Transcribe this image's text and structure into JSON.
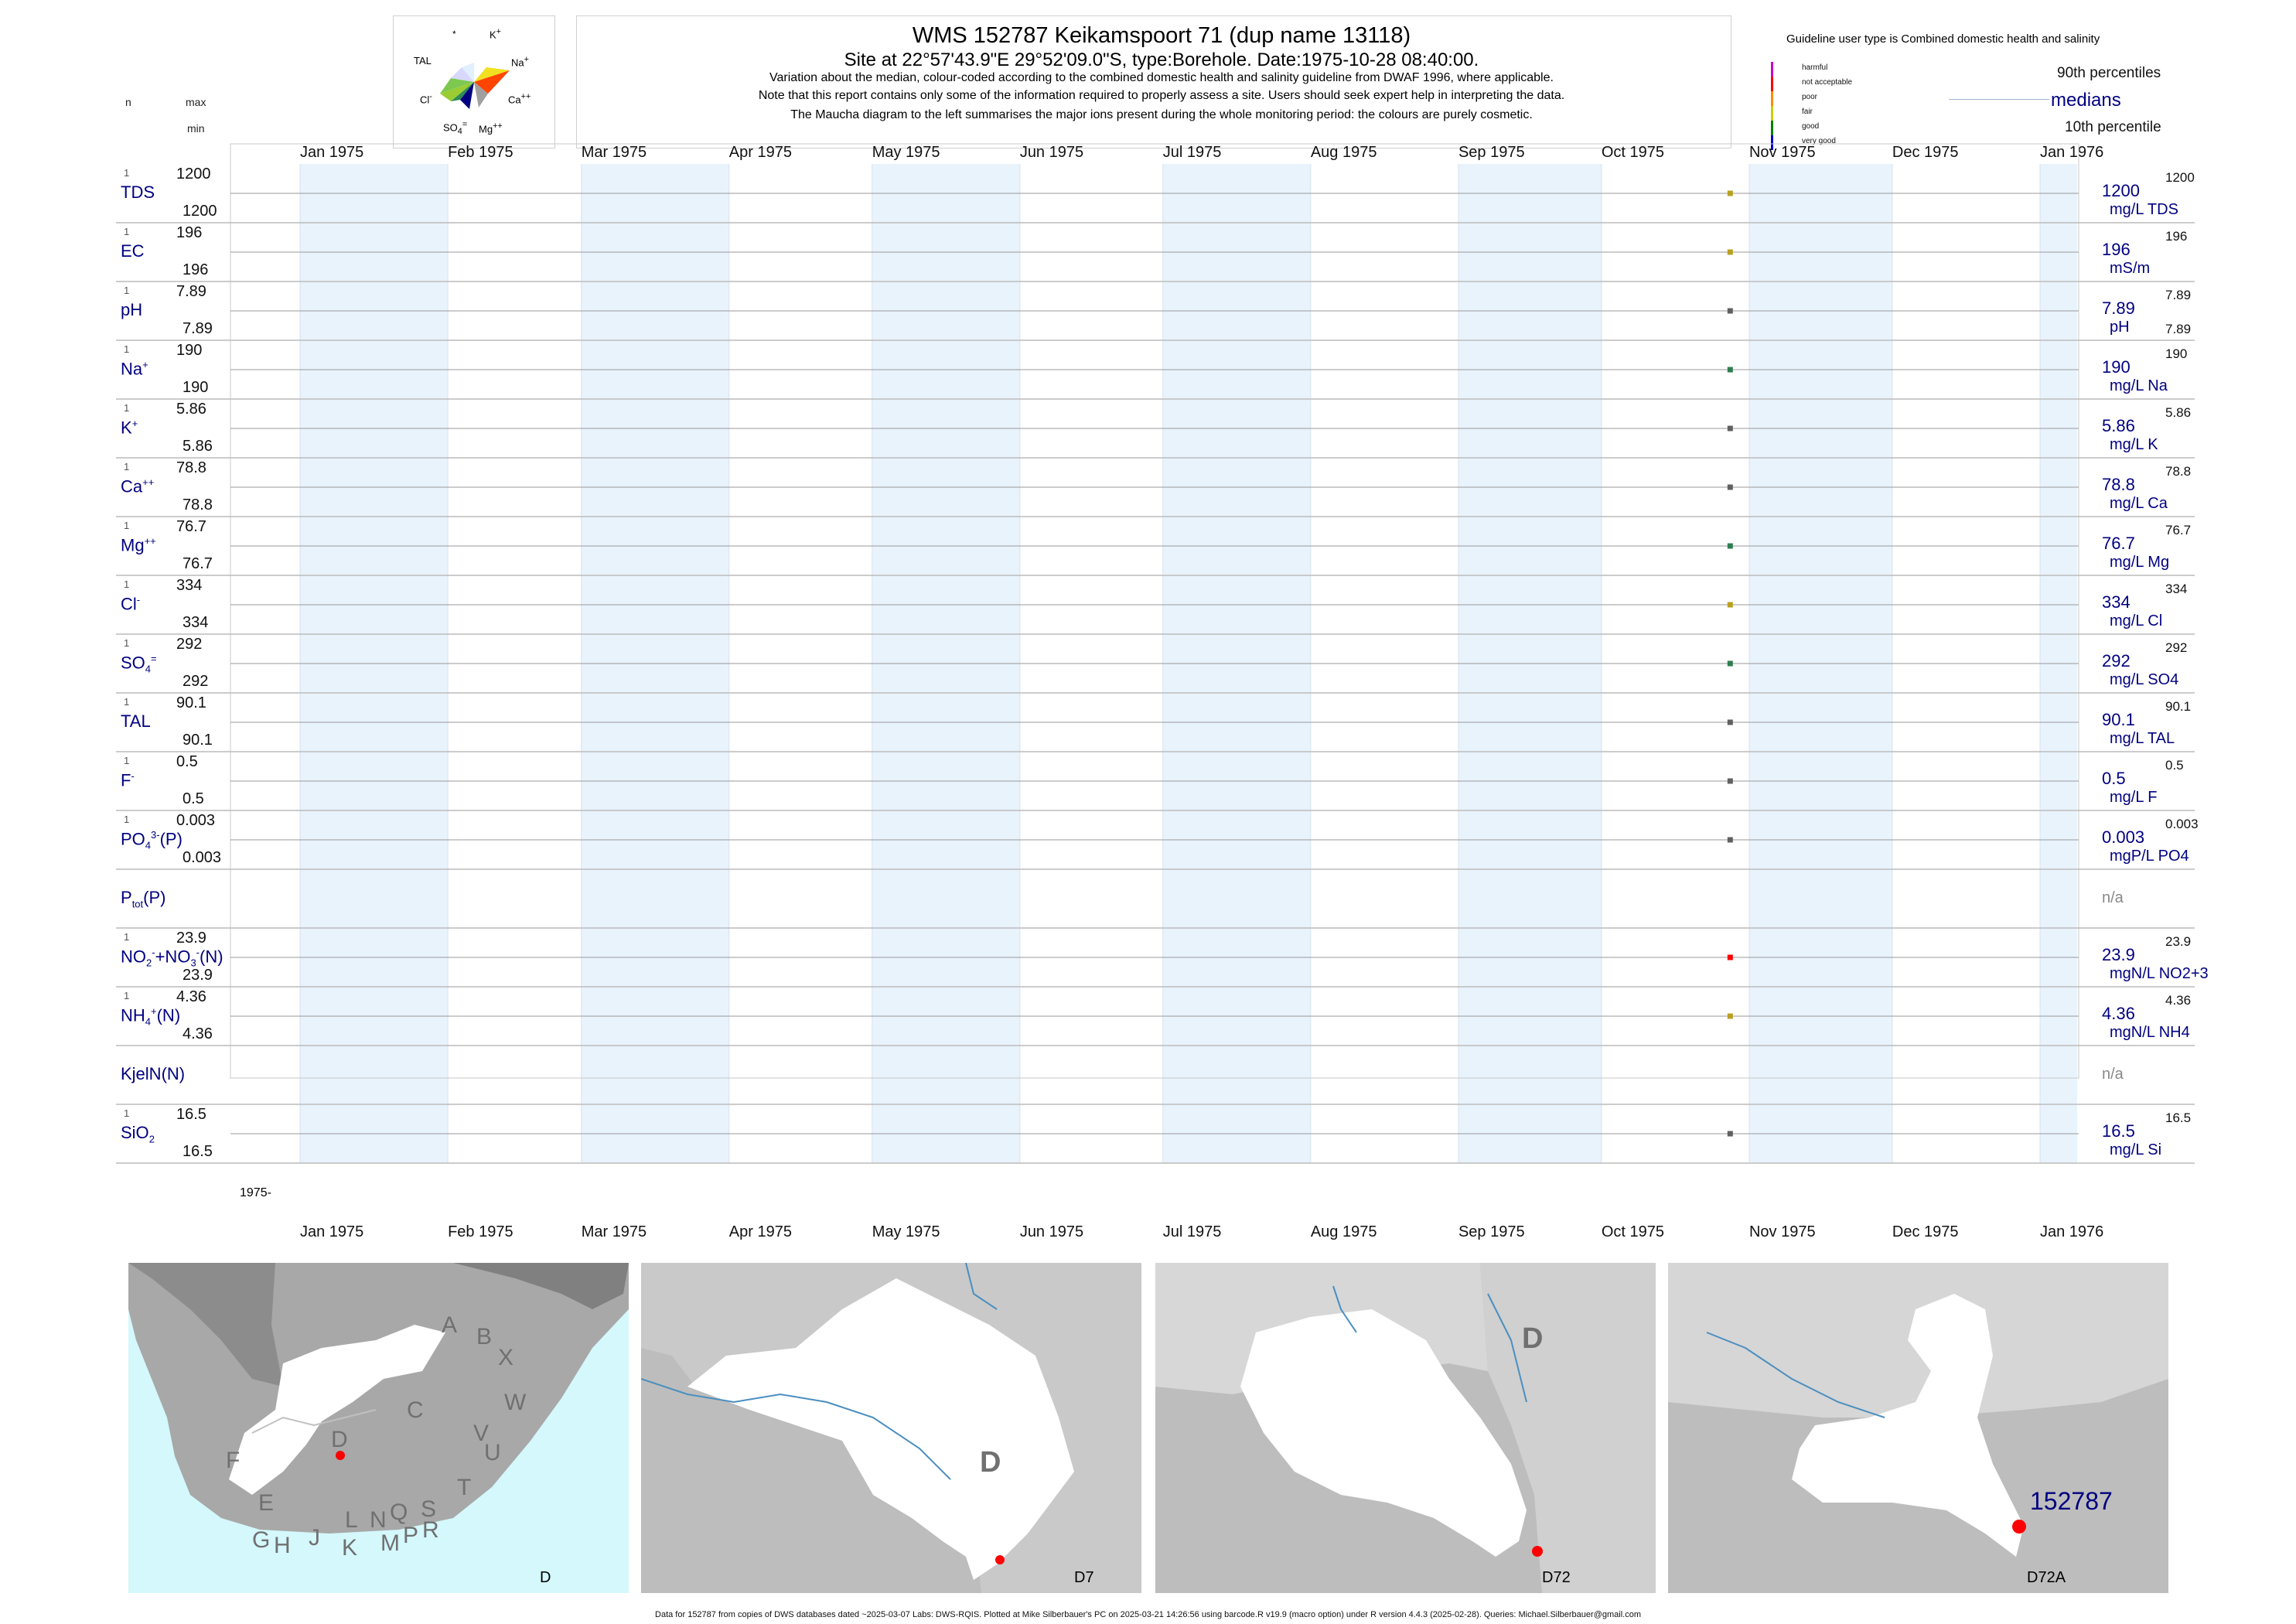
{
  "header": {
    "title": "WMS 152787  Keikamspoort 71 (dup name 13118)",
    "subtitle": "Site at 22°57'43.9\"E 29°52'09.0\"S, type:Borehole. Date:1975-10-28 08:40:00.",
    "note1": "Variation about the median,  colour-coded according to the combined domestic health and salinity guideline from DWAF 1996, where applicable.",
    "note2": "Note that this report contains only some of the information required to properly assess a site. Users should seek expert help in interpreting the data.",
    "note3": "The Maucha diagram to the left summarises the major ions present during the whole monitoring period: the colours are purely cosmetic.",
    "col_n": "n",
    "col_max": "max",
    "col_min": "min"
  },
  "maucha": {
    "labels": {
      "star": "*",
      "k": "K+",
      "na": "Na+",
      "ca": "Ca++",
      "mg": "Mg++",
      "so4": "SO4",
      "cl": "Cl-",
      "tal": "TAL"
    }
  },
  "legend": {
    "title": "Guideline user type is Combined domestic health and salinity",
    "scale": [
      {
        "label": "harmful",
        "color": "#cc00cc"
      },
      {
        "label": "not acceptable",
        "color": "#ff0000"
      },
      {
        "label": "poor",
        "color": "#ff8c00"
      },
      {
        "label": "fair",
        "color": "#cccc00"
      },
      {
        "label": "good",
        "color": "#008000"
      },
      {
        "label": "very good",
        "color": "#0000cc"
      }
    ],
    "p90": "90th percentiles",
    "medians": "medians",
    "p10": "10th percentile"
  },
  "months_top": [
    "Jan 1975",
    "Feb 1975",
    "Mar 1975",
    "Apr 1975",
    "May 1975",
    "Jun 1975",
    "Jul 1975",
    "Aug 1975",
    "Sep 1975",
    "Oct 1975",
    "Nov 1975",
    "Dec 1975",
    "Jan 1976"
  ],
  "start_label": "1975-",
  "chart_data": {
    "type": "scatter",
    "x_range": [
      "1975-01-01",
      "1976-01-01"
    ],
    "sample_date": "1975-10-28",
    "series": [
      {
        "name": "TDS",
        "n": "1",
        "max": "1200",
        "min": "1200",
        "value": 1200,
        "value_label": "1200",
        "unit": "mg/L TDS",
        "r_max": "1200",
        "r_min": "",
        "color": "#b8a020"
      },
      {
        "name": "EC",
        "n": "1",
        "max": "196",
        "min": "196",
        "value": 196,
        "value_label": "196",
        "unit": "mS/m",
        "r_max": "196",
        "r_min": "",
        "color": "#b8a020"
      },
      {
        "name": "pH",
        "n": "1",
        "max": "7.89",
        "min": "7.89",
        "value": 7.89,
        "value_label": "7.89",
        "unit": "pH",
        "r_max": "7.89",
        "r_min": "7.89",
        "color": "#606060"
      },
      {
        "name": "Na+",
        "n": "1",
        "max": "190",
        "min": "190",
        "value": 190,
        "value_label": "190",
        "unit": "mg/L Na",
        "r_max": "190",
        "r_min": "",
        "color": "#2e7d4f"
      },
      {
        "name": "K+",
        "n": "1",
        "max": "5.86",
        "min": "5.86",
        "value": 5.86,
        "value_label": "5.86",
        "unit": "mg/L K",
        "r_max": "5.86",
        "r_min": "",
        "color": "#606060"
      },
      {
        "name": "Ca++",
        "n": "1",
        "max": "78.8",
        "min": "78.8",
        "value": 78.8,
        "value_label": "78.8",
        "unit": "mg/L Ca",
        "r_max": "78.8",
        "r_min": "",
        "color": "#606060"
      },
      {
        "name": "Mg++",
        "n": "1",
        "max": "76.7",
        "min": "76.7",
        "value": 76.7,
        "value_label": "76.7",
        "unit": "mg/L Mg",
        "r_max": "76.7",
        "r_min": "",
        "color": "#2e7d4f"
      },
      {
        "name": "Cl-",
        "n": "1",
        "max": "334",
        "min": "334",
        "value": 334,
        "value_label": "334",
        "unit": "mg/L Cl",
        "r_max": "334",
        "r_min": "",
        "color": "#b8a020"
      },
      {
        "name": "SO4=",
        "n": "1",
        "max": "292",
        "min": "292",
        "value": 292,
        "value_label": "292",
        "unit": "mg/L SO4",
        "r_max": "292",
        "r_min": "",
        "color": "#2e7d4f"
      },
      {
        "name": "TAL",
        "n": "1",
        "max": "90.1",
        "min": "90.1",
        "value": 90.1,
        "value_label": "90.1",
        "unit": "mg/L TAL",
        "r_max": "90.1",
        "r_min": "",
        "color": "#606060"
      },
      {
        "name": "F-",
        "n": "1",
        "max": "0.5",
        "min": "0.5",
        "value": 0.5,
        "value_label": "0.5",
        "unit": "mg/L F",
        "r_max": "0.5",
        "r_min": "",
        "color": "#606060"
      },
      {
        "name": "PO4(P)",
        "n": "1",
        "max": "0.003",
        "min": "0.003",
        "value": 0.003,
        "value_label": "0.003",
        "unit": "mgP/L PO4",
        "r_max": "0.003",
        "r_min": "",
        "color": "#606060"
      },
      {
        "name": "Ptot(P)",
        "n": "",
        "max": "",
        "min": "",
        "value": null,
        "value_label": "n/a",
        "unit": "",
        "r_max": "",
        "r_min": "",
        "color": "#606060"
      },
      {
        "name": "NO2+NO3(N)",
        "n": "1",
        "max": "23.9",
        "min": "23.9",
        "value": 23.9,
        "value_label": "23.9",
        "unit": "mgN/L NO2+3",
        "r_max": "23.9",
        "r_min": "",
        "color": "#ff0000"
      },
      {
        "name": "NH4(N)",
        "n": "1",
        "max": "4.36",
        "min": "4.36",
        "value": 4.36,
        "value_label": "4.36",
        "unit": "mgN/L NH4",
        "r_max": "4.36",
        "r_min": "",
        "color": "#b8a020"
      },
      {
        "name": "KjelN(N)",
        "n": "",
        "max": "",
        "min": "",
        "value": null,
        "value_label": "n/a",
        "unit": "",
        "r_max": "",
        "r_min": "",
        "color": "#606060"
      },
      {
        "name": "SiO2",
        "n": "1",
        "max": "16.5",
        "min": "16.5",
        "value": 16.5,
        "value_label": "16.5",
        "unit": "mg/L Si",
        "r_max": "16.5",
        "r_min": "",
        "color": "#606060"
      }
    ]
  },
  "maps": {
    "labels": [
      "D",
      "D7",
      "D72",
      "D72A"
    ],
    "regions": [
      "A",
      "B",
      "X",
      "W",
      "C",
      "D",
      "V",
      "U",
      "T",
      "F",
      "E",
      "G",
      "H",
      "J",
      "K",
      "L",
      "N",
      "Q",
      "M",
      "P",
      "S",
      "R"
    ],
    "d_label": "D",
    "site_label": "152787"
  },
  "footer": "Data for 152787 from copies of DWS databases dated ~2025-03-07 Labs: DWS-RQIS. Plotted at Mike Silberbauer's PC on 2025-03-21 14:26:56 using barcode.R v19.9 (macro option) under R version 4.4.3 (2025-02-28). Queries: Michael.Silberbauer@gmail.com"
}
